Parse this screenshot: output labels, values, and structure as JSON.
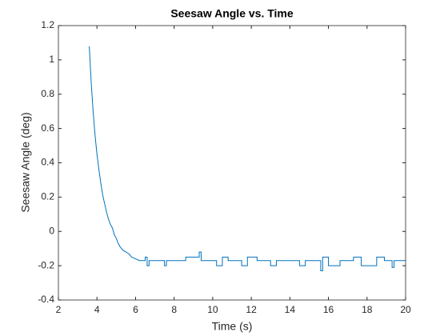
{
  "chart_data": {
    "type": "line",
    "title": "Seesaw Angle vs. Time",
    "xlabel": "Time (s)",
    "ylabel": "Seesaw Angle (deg)",
    "color": "#0072bd",
    "x": [
      3.6,
      3.7,
      3.8,
      3.9,
      4.0,
      4.1,
      4.2,
      4.3,
      4.4,
      4.5,
      4.6,
      4.7,
      4.8,
      4.9,
      5.0,
      5.1,
      5.2,
      5.35,
      5.5,
      5.65,
      5.8,
      6.0,
      6.2,
      6.5,
      6.5,
      6.6,
      6.6,
      6.7,
      6.7,
      7.5,
      7.5,
      7.6,
      7.6,
      8.6,
      8.6,
      9.3,
      9.3,
      9.4,
      9.4,
      10.2,
      10.2,
      10.5,
      10.5,
      10.8,
      10.8,
      11.5,
      11.5,
      11.8,
      11.8,
      12.3,
      12.3,
      13.0,
      13.0,
      13.3,
      13.3,
      14.5,
      14.5,
      14.8,
      14.8,
      15.6,
      15.6,
      15.7,
      15.7,
      16.0,
      16.0,
      16.6,
      16.6,
      17.3,
      17.3,
      17.7,
      17.7,
      18.5,
      18.5,
      18.9,
      18.9,
      19.3,
      19.3,
      19.4,
      19.4,
      20
    ],
    "values": [
      1.08,
      0.87,
      0.7,
      0.56,
      0.45,
      0.36,
      0.28,
      0.21,
      0.16,
      0.11,
      0.07,
      0.04,
      0.02,
      -0.02,
      -0.04,
      -0.07,
      -0.09,
      -0.11,
      -0.12,
      -0.13,
      -0.15,
      -0.16,
      -0.17,
      -0.17,
      -0.15,
      -0.15,
      -0.2,
      -0.2,
      -0.17,
      -0.17,
      -0.2,
      -0.2,
      -0.17,
      -0.17,
      -0.15,
      -0.15,
      -0.12,
      -0.12,
      -0.17,
      -0.17,
      -0.2,
      -0.2,
      -0.15,
      -0.15,
      -0.17,
      -0.17,
      -0.2,
      -0.2,
      -0.15,
      -0.15,
      -0.17,
      -0.17,
      -0.2,
      -0.2,
      -0.17,
      -0.17,
      -0.2,
      -0.2,
      -0.17,
      -0.17,
      -0.23,
      -0.23,
      -0.15,
      -0.15,
      -0.2,
      -0.2,
      -0.17,
      -0.17,
      -0.15,
      -0.15,
      -0.2,
      -0.2,
      -0.15,
      -0.15,
      -0.17,
      -0.17,
      -0.21,
      -0.21,
      -0.17,
      -0.17
    ],
    "xlim": [
      2,
      20
    ],
    "xticks": [
      2,
      4,
      6,
      8,
      10,
      12,
      14,
      16,
      18,
      20
    ],
    "ylim": [
      -0.4,
      1.2
    ],
    "yticks": [
      -0.4,
      -0.2,
      0,
      0.2,
      0.4,
      0.6,
      0.8,
      1,
      1.2
    ]
  }
}
